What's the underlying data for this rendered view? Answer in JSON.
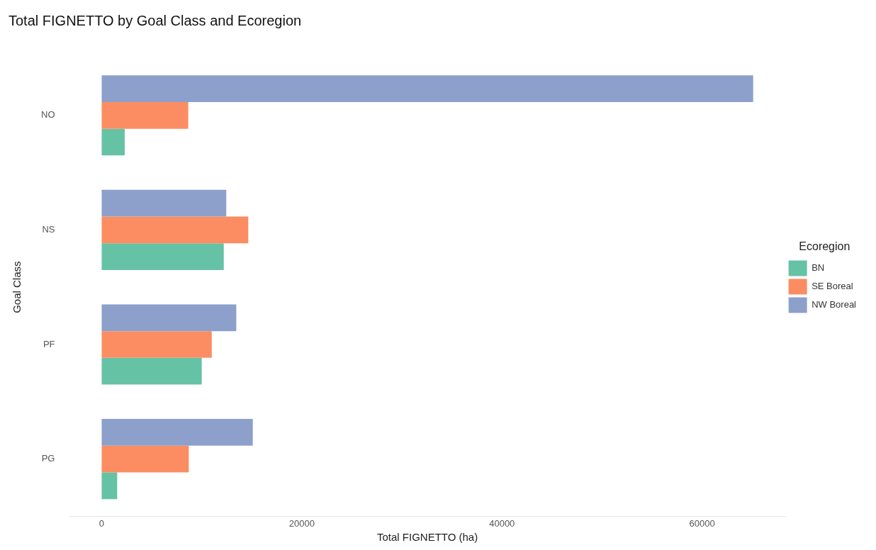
{
  "chart_data": {
    "type": "bar",
    "orientation": "horizontal",
    "title": "Total FIGNETTO by Goal Class and Ecoregion",
    "xlabel": "Total FIGNETTO (ha)",
    "ylabel": "Goal Class",
    "legend_title": "Ecoregion",
    "legend": "right",
    "grid": false,
    "categories": [
      "NO",
      "NS",
      "PF",
      "PG"
    ],
    "series": [
      {
        "name": "BN",
        "color": "#66c2a5",
        "values": [
          2300,
          12200,
          10000,
          1550
        ]
      },
      {
        "name": "SE Boreal",
        "color": "#fc8d62",
        "values": [
          8650,
          14650,
          11000,
          8700
        ]
      },
      {
        "name": "NW Boreal",
        "color": "#8da0cb",
        "values": [
          65100,
          12450,
          13450,
          15100
        ]
      }
    ],
    "xlim": [
      -3255,
      68355
    ],
    "xticks": [
      0,
      20000,
      40000,
      60000
    ]
  }
}
